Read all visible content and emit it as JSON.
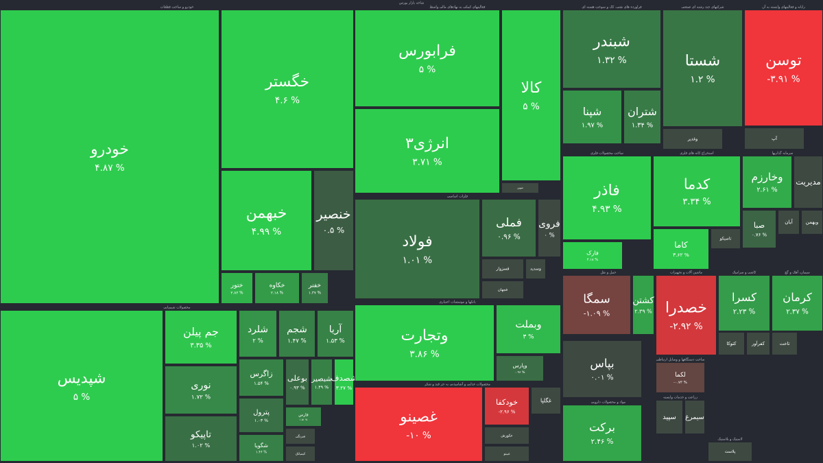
{
  "chart_data": {
    "type": "treemap",
    "title": "شاخه بازار بورس",
    "background": "#262931",
    "color_positive": "#2ecc4e",
    "color_neutral": "#3e4942",
    "color_negative": "#f0353b",
    "sectors": [
      {
        "name": "خودرو و ساخت قطعات",
        "tiles": [
          {
            "name": "خودرو",
            "value": 4.87,
            "value_label": "۴.۸۷ %"
          },
          {
            "name": "خگستر",
            "value": 4.6,
            "value_label": "۴.۶ %"
          },
          {
            "name": "خبهمن",
            "value": 4.99,
            "value_label": "۴.۹۹ %"
          },
          {
            "name": "خنصیر",
            "value": 0.5,
            "value_label": "۰.۵ %"
          },
          {
            "name": "ختور",
            "value": 2.82,
            "value_label": "۲.۸۲ %"
          },
          {
            "name": "خکاوه",
            "value": 2.18,
            "value_label": "۲.۱۸ %"
          },
          {
            "name": "خفنر",
            "value": 1.37,
            "value_label": "۱.۳۷ %"
          }
        ]
      },
      {
        "name": "محصولات شیمیایی",
        "tiles": [
          {
            "name": "شپدیس",
            "value": 5,
            "value_label": "۵ %"
          },
          {
            "name": "جم پیلن",
            "value": 3.35,
            "value_label": "۳.۳۵ %"
          },
          {
            "name": "نوری",
            "value": 1.72,
            "value_label": "۱.۷۲ %"
          },
          {
            "name": "تاپیکو",
            "value": 1.02,
            "value_label": "۱.۰۲ %"
          },
          {
            "name": "شلرد",
            "value": 2,
            "value_label": "۲ %"
          },
          {
            "name": "شجم",
            "value": 1.47,
            "value_label": "۱.۴۷ %"
          },
          {
            "name": "آریا",
            "value": 1.53,
            "value_label": "۱.۵۳ %"
          },
          {
            "name": "زاگرس",
            "value": 1.54,
            "value_label": "۱.۵۴ %"
          },
          {
            "name": "بوعلی",
            "value": 0.93,
            "value_label": "۰.۹۳ %"
          },
          {
            "name": "شبصیر",
            "value": 1.49,
            "value_label": "۱.۴۹ %"
          },
          {
            "name": "شصدف",
            "value": 3.47,
            "value_label": "۳.۴۷ %"
          },
          {
            "name": "پترول",
            "value": 1.03,
            "value_label": "۱.۰۳ %"
          },
          {
            "name": "شگویا",
            "value": 1.46,
            "value_label": "۱.۴۶ %"
          },
          {
            "name": "فارس",
            "value": 1.51,
            "value_label": "۱.۵۱ %"
          },
          {
            "name": "شرنگی"
          },
          {
            "name": "کیمیاتک"
          }
        ]
      },
      {
        "name": "فعالیتهای کمکی به نهادهای مالی واسط",
        "tiles": [
          {
            "name": "فرابورس",
            "value": 5,
            "value_label": "۵ %"
          },
          {
            "name": "انرژی۳",
            "value": 3.71,
            "value_label": "۳.۷۱ %"
          },
          {
            "name": "کالا",
            "value": 5,
            "value_label": "۵ %"
          },
          {
            "name": "تنوین"
          }
        ]
      },
      {
        "name": "فلزات اساسی",
        "tiles": [
          {
            "name": "فولاد",
            "value": 1.01,
            "value_label": "۱.۰۱ %"
          },
          {
            "name": "فملی",
            "value": 0.96,
            "value_label": "۰.۹۶ %"
          },
          {
            "name": "فروی",
            "value": 0,
            "value_label": "۰ %"
          },
          {
            "name": "فسزوار"
          },
          {
            "name": "وسدید"
          },
          {
            "name": "فجهان"
          }
        ]
      },
      {
        "name": "بانکها و موسسات اعتباری",
        "tiles": [
          {
            "name": "وتجارت",
            "value": 3.86,
            "value_label": "۳.۸۶ %"
          },
          {
            "name": "وبملت",
            "value": 3,
            "value_label": "۳ %"
          },
          {
            "name": "وپارس",
            "value": 0.96,
            "value_label": "۰.۹۶ %"
          }
        ]
      },
      {
        "name": "محصولات غذایی و آشامیدنی به جز قند و شکر",
        "tiles": [
          {
            "name": "غصینو",
            "value": -10,
            "value_label": "-۱۰ %"
          },
          {
            "name": "خودکفا",
            "value": -2.96,
            "value_label": "-۲.۹۶ %"
          },
          {
            "name": "غگلپا"
          },
          {
            "name": "عکورش"
          },
          {
            "name": "غبینو"
          }
        ]
      },
      {
        "name": "فراورده های نفتی، کک و سوخت هسته ای",
        "tiles": [
          {
            "name": "شبندر",
            "value": 1.32,
            "value_label": "۱.۳۲ %"
          },
          {
            "name": "شپنا",
            "value": 1.97,
            "value_label": "۱.۹۷ %"
          },
          {
            "name": "شتران",
            "value": 1.34,
            "value_label": "۱.۳۴ %"
          }
        ]
      },
      {
        "name": "شرکتهای چند رشته ای صنعتی",
        "tiles": [
          {
            "name": "شستا",
            "value": 1.2,
            "value_label": "۱.۲ %"
          },
          {
            "name": "وغدیر"
          }
        ]
      },
      {
        "name": "رایانه و فعالیتهای وابسته به آن",
        "tiles": [
          {
            "name": "توسن",
            "value": -3.91,
            "value_label": "-۳.۹۱ %"
          },
          {
            "name": "آپ"
          }
        ]
      },
      {
        "name": "ساخت محصولات فلزی",
        "tiles": [
          {
            "name": "فاذر",
            "value": 4.93,
            "value_label": "۴.۹۳ %"
          },
          {
            "name": "فارک",
            "value": 4.18,
            "value_label": "۴.۱۸ %"
          }
        ]
      },
      {
        "name": "استخراج کانه های فلزی",
        "tiles": [
          {
            "name": "کدما",
            "value": 3.34,
            "value_label": "۳.۳۴ %"
          },
          {
            "name": "کاما",
            "value": 3.62,
            "value_label": "۳.۶۲ %"
          },
          {
            "name": "تاصیکو"
          }
        ]
      },
      {
        "name": "سرمایه گذاریها",
        "tiles": [
          {
            "name": "وخارزم",
            "value": 2.61,
            "value_label": "۲.۶۱ %"
          },
          {
            "name": "مدیریت"
          },
          {
            "name": "صبا",
            "value": 0.76,
            "value_label": "۰.۷۶ %"
          },
          {
            "name": "آبان"
          },
          {
            "name": "وبهمن"
          }
        ]
      },
      {
        "name": "حمل و نقل",
        "tiles": [
          {
            "name": "سمگا",
            "value": -1.09,
            "value_label": "-۱.۰۹ %"
          },
          {
            "name": "کشتن",
            "value": 2.39,
            "value_label": "۲.۳۹ %"
          },
          {
            "name": "بپاس",
            "value": 0.01,
            "value_label": "۰.۰۱ %"
          }
        ]
      },
      {
        "name": "مواد و محصولات دارویی",
        "tiles": [
          {
            "name": "برکت",
            "value": 2.46,
            "value_label": "۲.۴۶ %"
          }
        ]
      },
      {
        "name": "ماشین آلات و تجهیزات",
        "tiles": [
          {
            "name": "خصدرا",
            "value": -2.92,
            "value_label": "-۲.۹۲ %"
          }
        ]
      },
      {
        "name": "کاشی و سرامیک",
        "tiles": [
          {
            "name": "کسرا",
            "value": 2.23,
            "value_label": "۲.۲۳ %"
          },
          {
            "name": "کتوکا"
          },
          {
            "name": "کفرآور"
          }
        ]
      },
      {
        "name": "سیمان، آهک و گچ",
        "tiles": [
          {
            "name": "کرمان",
            "value": 2.37,
            "value_label": "۲.۳۷ %"
          },
          {
            "name": "تاخت"
          }
        ]
      },
      {
        "name": "ساخت دستگاهها و وسایل ارتباطی",
        "tiles": [
          {
            "name": "لکما",
            "value": -0.73,
            "value_label": "-۰.۷۳ %"
          }
        ]
      },
      {
        "name": "زراعت و خدمات وابسته",
        "tiles": [
          {
            "name": "سپید"
          },
          {
            "name": "سیمرغ"
          }
        ]
      },
      {
        "name": "لاستیک و پلاستیک",
        "tiles": [
          {
            "name": "پلاست"
          }
        ]
      }
    ]
  }
}
